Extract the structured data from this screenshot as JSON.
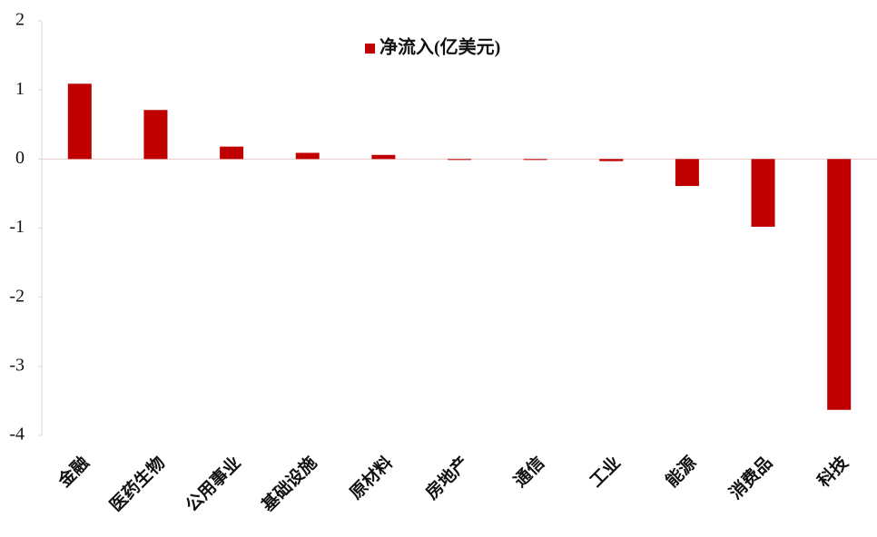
{
  "chart_data": {
    "type": "bar",
    "categories": [
      "金融",
      "医药生物",
      "公用事业",
      "基础设施",
      "原材料",
      "房地产",
      "通信",
      "工业",
      "能源",
      "消费品",
      "科技"
    ],
    "series": [
      {
        "name": "净流入(亿美元)",
        "color": "#c00000",
        "values": [
          1.09,
          0.71,
          0.18,
          0.09,
          0.06,
          -0.01,
          -0.01,
          -0.03,
          -0.39,
          -0.98,
          -3.63
        ]
      }
    ],
    "ylim": [
      -4,
      2
    ],
    "yticks": [
      2,
      1,
      0,
      -1,
      -2,
      -3,
      -4
    ]
  }
}
